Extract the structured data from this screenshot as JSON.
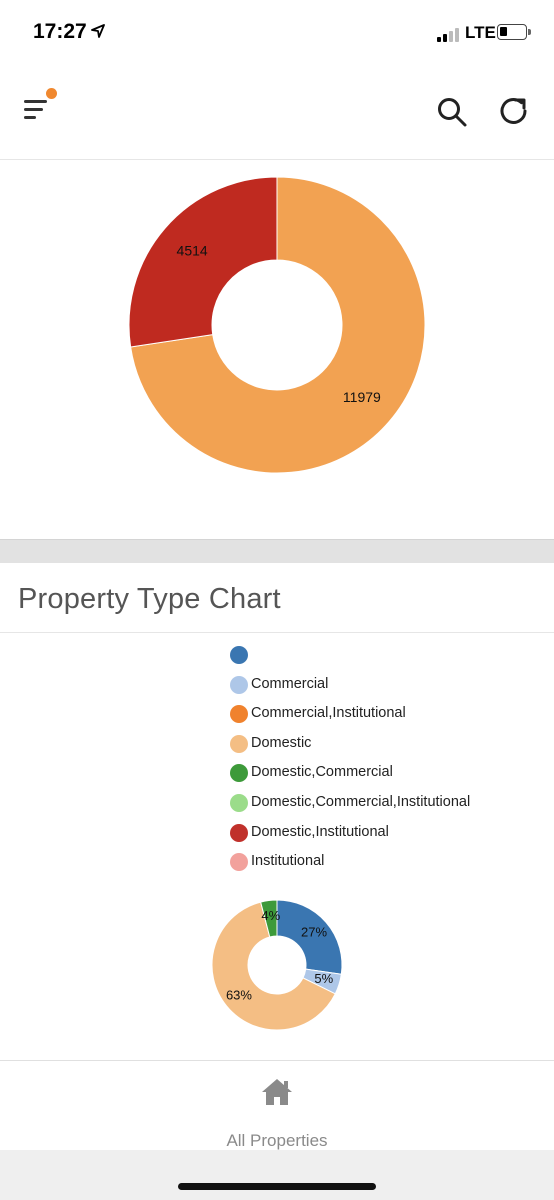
{
  "status_bar": {
    "time": "17:27",
    "network": "LTE"
  },
  "header": {
    "menu_icon": "menu-icon",
    "notification_dot_color": "#f0882f",
    "search_icon": "search-icon",
    "refresh_icon": "refresh-icon"
  },
  "chart_data": [
    {
      "type": "pie",
      "labels": [
        "",
        ""
      ],
      "values": [
        11979,
        4514
      ],
      "value_labels": [
        "11979",
        "4514"
      ],
      "colors": [
        "#f2a252",
        "#bf2a20"
      ],
      "donut": true
    },
    {
      "type": "pie",
      "title": "Property Type Chart",
      "labels": [
        "",
        "Commercial",
        "Commercial,Institutional",
        "Domestic",
        "Domestic,Commercial",
        "Domestic,Commercial,Institutional",
        "Domestic,Institutional",
        "Institutional"
      ],
      "colors": [
        "#3a76b1",
        "#aec7e8",
        "#f0822d",
        "#f4be84",
        "#3d9a3a",
        "#9bdc8a",
        "#c0312b",
        "#f2a19c"
      ],
      "values": [
        27,
        5,
        0,
        63,
        4,
        0,
        0,
        0
      ],
      "value_labels": [
        "27%",
        "5%",
        "",
        "63%",
        "4%",
        "",
        "",
        ""
      ],
      "legend": "top",
      "donut": true
    }
  ],
  "card": {
    "title": "Property Type Chart"
  },
  "tab_bar": {
    "home_icon": "home-icon",
    "label": "All Properties"
  }
}
